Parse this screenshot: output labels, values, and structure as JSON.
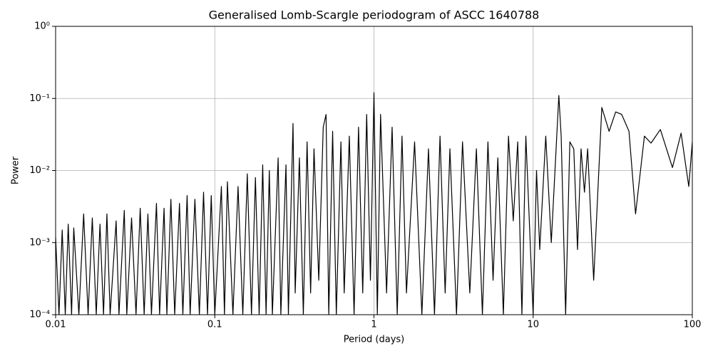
{
  "chart_data": {
    "type": "line",
    "title": "Generalised Lomb-Scargle periodogram of ASCC 1640788",
    "x_label": "Period (days)",
    "y_label": "Power",
    "x_scale": "log",
    "y_scale": "log",
    "grid": true,
    "color": "#000000",
    "xlim": [
      0.01,
      100
    ],
    "ylim": [
      0.0001,
      1
    ],
    "xticks": [
      0.01,
      0.1,
      1,
      10,
      100
    ],
    "yticks": [
      {
        "value": 0.0001,
        "label": "10⁻⁴"
      },
      {
        "value": 0.001,
        "label": "10⁻³"
      },
      {
        "value": 0.01,
        "label": "10⁻²"
      },
      {
        "value": 0.1,
        "label": "10⁻¹"
      },
      {
        "value": 1,
        "label": "10⁰"
      }
    ],
    "x": [
      0.01,
      0.0105,
      0.011,
      0.0115,
      0.012,
      0.0126,
      0.013,
      0.014,
      0.015,
      0.016,
      0.017,
      0.018,
      0.019,
      0.02,
      0.021,
      0.022,
      0.024,
      0.025,
      0.027,
      0.028,
      0.03,
      0.032,
      0.034,
      0.036,
      0.038,
      0.04,
      0.043,
      0.045,
      0.048,
      0.05,
      0.053,
      0.056,
      0.06,
      0.063,
      0.067,
      0.07,
      0.075,
      0.08,
      0.085,
      0.09,
      0.095,
      0.1,
      0.11,
      0.115,
      0.12,
      0.13,
      0.14,
      0.15,
      0.16,
      0.17,
      0.18,
      0.19,
      0.2,
      0.21,
      0.22,
      0.23,
      0.25,
      0.26,
      0.28,
      0.29,
      0.31,
      0.32,
      0.34,
      0.36,
      0.38,
      0.4,
      0.42,
      0.45,
      0.48,
      0.5,
      0.52,
      0.55,
      0.58,
      0.62,
      0.65,
      0.7,
      0.75,
      0.8,
      0.85,
      0.9,
      0.95,
      1.0,
      1.05,
      1.1,
      1.2,
      1.3,
      1.4,
      1.5,
      1.6,
      1.8,
      2.0,
      2.2,
      2.4,
      2.6,
      2.8,
      3.0,
      3.3,
      3.6,
      4.0,
      4.4,
      4.8,
      5.2,
      5.6,
      6.0,
      6.5,
      7.0,
      7.5,
      8.0,
      8.5,
      9.0,
      10.0,
      10.5,
      11,
      12,
      13,
      14.5,
      15,
      16,
      17,
      18,
      19,
      20,
      21,
      22,
      24,
      27,
      30,
      33,
      36,
      40,
      44,
      50,
      55,
      63,
      75,
      85,
      95,
      100
    ],
    "values": [
      0.0012,
      0.0001,
      0.0015,
      0.0001,
      0.0018,
      0.0001,
      0.0016,
      0.0001,
      0.0025,
      0.0001,
      0.0022,
      0.0001,
      0.0018,
      0.0001,
      0.0025,
      0.0001,
      0.002,
      0.0001,
      0.0028,
      0.0001,
      0.0022,
      0.0001,
      0.003,
      0.0001,
      0.0025,
      0.0001,
      0.0035,
      0.0001,
      0.003,
      0.0001,
      0.004,
      0.0001,
      0.0035,
      0.0001,
      0.0045,
      0.0001,
      0.004,
      0.0001,
      0.005,
      0.0001,
      0.0045,
      0.0001,
      0.006,
      0.0001,
      0.007,
      0.0001,
      0.006,
      0.0001,
      0.009,
      0.0001,
      0.008,
      0.0001,
      0.012,
      0.0001,
      0.01,
      0.0001,
      0.015,
      0.0001,
      0.012,
      0.0001,
      0.045,
      0.0002,
      0.015,
      0.0001,
      0.025,
      0.0002,
      0.02,
      0.0003,
      0.04,
      0.06,
      0.0001,
      0.035,
      0.0001,
      0.025,
      0.0002,
      0.03,
      0.0001,
      0.04,
      0.0002,
      0.06,
      0.0003,
      0.12,
      0.0001,
      0.06,
      0.0002,
      0.04,
      0.0001,
      0.03,
      0.0002,
      0.025,
      0.0001,
      0.02,
      0.0001,
      0.03,
      0.0002,
      0.02,
      0.0001,
      0.025,
      0.0002,
      0.02,
      0.0001,
      0.025,
      0.0003,
      0.015,
      0.0001,
      0.03,
      0.002,
      0.025,
      0.0001,
      0.03,
      0.0001,
      0.01,
      0.0008,
      0.03,
      0.001,
      0.11,
      0.03,
      0.0001,
      0.025,
      0.02,
      0.0008,
      0.02,
      0.005,
      0.02,
      0.0003,
      0.075,
      0.035,
      0.065,
      0.06,
      0.035,
      0.0025,
      0.03,
      0.024,
      0.037,
      0.011,
      0.033,
      0.006,
      0.025
    ]
  }
}
